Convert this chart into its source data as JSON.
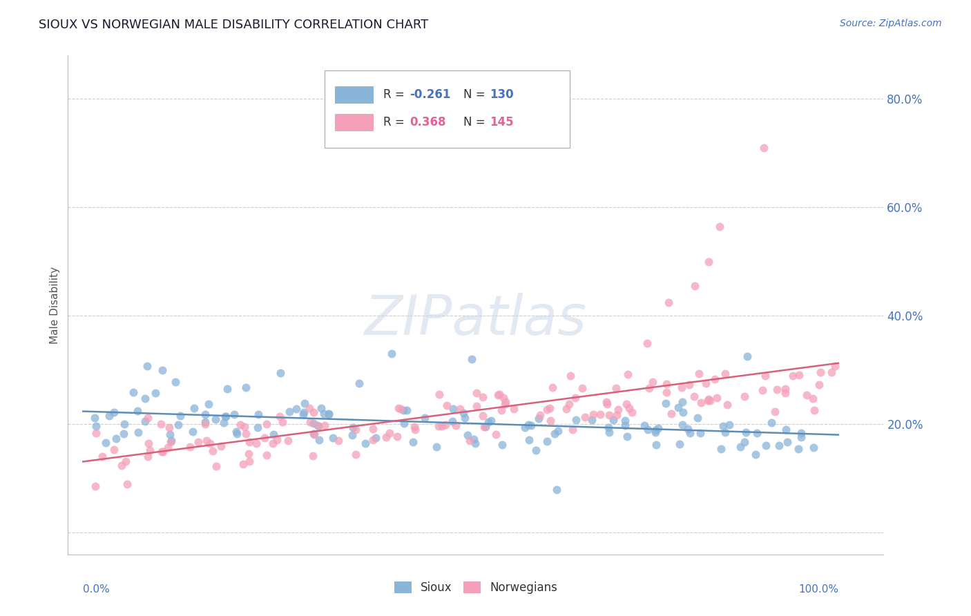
{
  "title": "SIOUX VS NORWEGIAN MALE DISABILITY CORRELATION CHART",
  "source": "Source: ZipAtlas.com",
  "ylabel": "Male Disability",
  "sioux_color": "#8ab4d8",
  "norwegian_color": "#f4a0b8",
  "sioux_line_color": "#5b8db8",
  "norwegian_line_color": "#d9607a",
  "watermark": "ZIPatlas",
  "background_color": "#ffffff",
  "ylim_min": -0.04,
  "ylim_max": 0.88,
  "xlim_min": -0.02,
  "xlim_max": 1.06,
  "ytick_vals": [
    0.0,
    0.2,
    0.4,
    0.6,
    0.8
  ],
  "ytick_labels": [
    "",
    "20.0%",
    "40.0%",
    "60.0%",
    "80.0%"
  ],
  "legend_R_sioux": "-0.261",
  "legend_N_sioux": "130",
  "legend_R_norw": "0.368",
  "legend_N_norw": "145",
  "legend_color_blue": "#4472c4",
  "legend_color_pink": "#e8609a",
  "title_color": "#1a1a2e",
  "source_color": "#4472c4",
  "ytick_color": "#4472c4",
  "grid_color": "#cccccc",
  "sioux_seed": 42,
  "norw_seed": 99
}
